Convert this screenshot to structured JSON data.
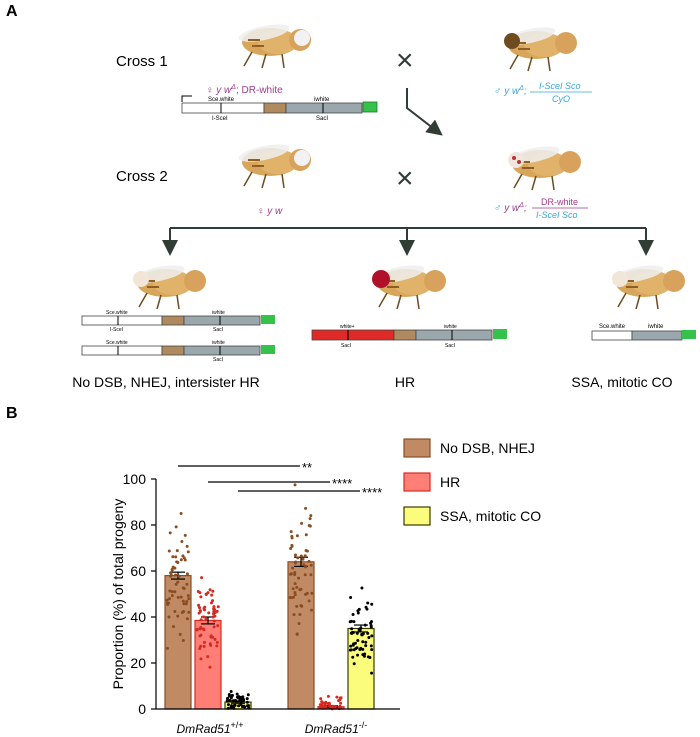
{
  "panel_a": {
    "letter": "A",
    "cross1": {
      "label": "Cross 1",
      "female_symbol": "♀",
      "female_genotype": "y w",
      "female_sup": "Δ",
      "female_construct": "; DR-white",
      "male_symbol": "♂",
      "male_genotype": "y w",
      "male_sup": "Δ",
      "male_semicolon": ";",
      "male_top": "I-SceI Sco",
      "male_bottom": "CyO"
    },
    "cross2": {
      "label": "Cross 2",
      "female_symbol": "♀",
      "female_genotype": "y w",
      "male_symbol": "♂",
      "male_genotype": "y w",
      "male_sup": "Δ",
      "male_semicolon": ";",
      "male_top": "DR-white",
      "male_bottom": "I-SceI Sco"
    },
    "constructs": {
      "sce_white": "Sce.white",
      "iwhite": "iwhite",
      "white_plus": "white+",
      "isce": "I-SceI",
      "saci": "SacI"
    },
    "outcomes": [
      "No DSB, NHEJ, intersister HR",
      "HR",
      "SSA, mitotic CO"
    ],
    "cross_symbol": "×"
  },
  "panel_b": {
    "letter": "B",
    "legend": [
      "No DSB, NHEJ",
      "HR",
      "SSA, mitotic CO"
    ],
    "sig": [
      "**",
      "****",
      "****"
    ]
  },
  "chart_data": {
    "type": "bar",
    "ylabel": "Proportion (%) of total progeny",
    "ylim": [
      0,
      100
    ],
    "yticks": [
      "0",
      "20",
      "40",
      "60",
      "80",
      "100"
    ],
    "group_labels": [
      {
        "name": "DmRad51",
        "sup": "+/+"
      },
      {
        "name": "DmRad51",
        "sup": "-/-"
      }
    ],
    "series": [
      {
        "name": "No DSB, NHEJ",
        "values": [
          58,
          64
        ],
        "sem": [
          1.5,
          2
        ],
        "color": "#c08a64",
        "edge": "#8b4d22",
        "dot": "#8b4d22"
      },
      {
        "name": "HR",
        "values": [
          38.5,
          1
        ],
        "sem": [
          1.5,
          0.4
        ],
        "color": "#ff7f77",
        "edge": "#d7291f",
        "dot": "#d7291f"
      },
      {
        "name": "SSA, mitotic CO",
        "values": [
          3,
          35
        ],
        "sem": [
          0.5,
          1.5
        ],
        "color": "#fcfc7c",
        "edge": "#3a3a00",
        "dot": "#000000"
      }
    ]
  }
}
